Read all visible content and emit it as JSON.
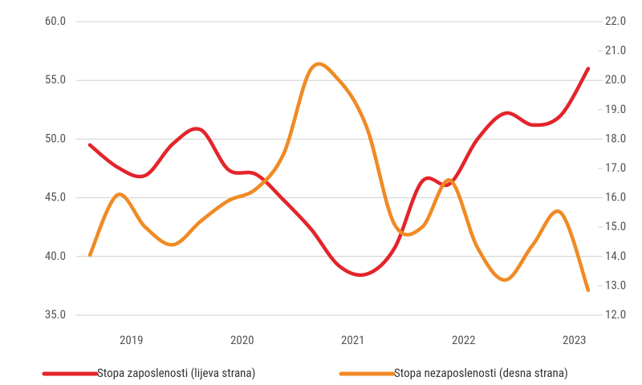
{
  "chart_data": {
    "type": "line",
    "categories": [
      null,
      "2019",
      null,
      null,
      null,
      "2020",
      null,
      null,
      null,
      "2021",
      null,
      null,
      null,
      "2022",
      null,
      null,
      null,
      "2023",
      null
    ],
    "series": [
      {
        "name": "Stopa zaposlenosti (lijeva strana)",
        "color": "#e3242b",
        "axis": "y",
        "values": [
          49.5,
          47.6,
          46.9,
          49.6,
          50.8,
          47.4,
          47.0,
          44.8,
          42.3,
          39.2,
          38.5,
          40.7,
          46.4,
          46.2,
          50.0,
          52.2,
          51.2,
          52.0,
          56.0
        ]
      },
      {
        "name": "Stopa nezaposlenosti (desna strana)",
        "color": "#f08a24",
        "axis": "y2",
        "values": [
          14.05,
          16.1,
          15.0,
          14.4,
          15.2,
          15.9,
          16.3,
          17.5,
          20.4,
          20.0,
          18.4,
          15.1,
          15.0,
          16.6,
          14.3,
          13.2,
          14.4,
          15.5,
          12.85
        ]
      }
    ],
    "ylim": [
      35,
      60
    ],
    "yticks": [
      {
        "value": 35,
        "label": "35.0"
      },
      {
        "value": 40,
        "label": "40.0"
      },
      {
        "value": 45,
        "label": "45.0"
      },
      {
        "value": 50,
        "label": "50.0"
      },
      {
        "value": 55,
        "label": "55.0"
      },
      {
        "value": 60,
        "label": "60.0"
      }
    ],
    "y2lim": [
      12,
      22
    ],
    "y2ticks": [
      {
        "value": 12,
        "label": "12.0"
      },
      {
        "value": 13,
        "label": "13.0"
      },
      {
        "value": 14,
        "label": "14.0"
      },
      {
        "value": 15,
        "label": "15.0"
      },
      {
        "value": 16,
        "label": "16.0"
      },
      {
        "value": 17,
        "label": "17.0"
      },
      {
        "value": 18,
        "label": "18.0"
      },
      {
        "value": 19,
        "label": "19.0"
      },
      {
        "value": 20,
        "label": "20.0"
      },
      {
        "value": 21,
        "label": "21.0"
      },
      {
        "value": 22,
        "label": "22.0"
      }
    ],
    "grid": true,
    "legend": "bottom"
  }
}
